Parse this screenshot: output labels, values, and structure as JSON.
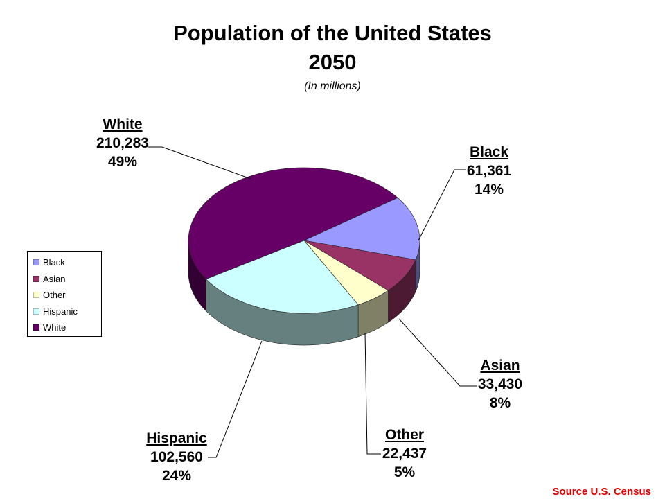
{
  "chart_data": {
    "type": "pie",
    "title": "Population of the United States",
    "title_line2": "2050",
    "subtitle": "(In millions)",
    "legend_position": "left",
    "slices": [
      {
        "name": "Black",
        "value": "61,361",
        "percent": "14%",
        "numeric": 61361,
        "color": "#9999ff"
      },
      {
        "name": "Asian",
        "value": "33,430",
        "percent": "8%",
        "numeric": 33430,
        "color": "#993366"
      },
      {
        "name": "Other",
        "value": "22,437",
        "percent": "5%",
        "numeric": 22437,
        "color": "#ffffcc"
      },
      {
        "name": "Hispanic",
        "value": "102,560",
        "percent": "24%",
        "numeric": 102560,
        "color": "#ccffff"
      },
      {
        "name": "White",
        "value": "210,283",
        "percent": "49%",
        "numeric": 210283,
        "color": "#660066"
      }
    ],
    "source": "Source U.S. Census"
  }
}
